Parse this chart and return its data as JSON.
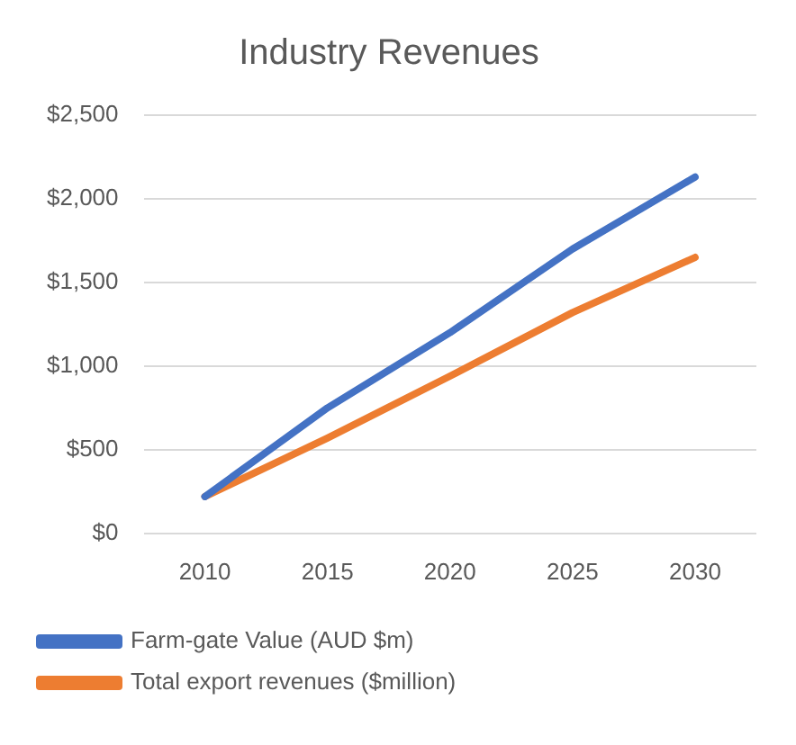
{
  "chart_data": {
    "type": "line",
    "title": "Industry Revenues",
    "categories": [
      "2010",
      "2015",
      "2020",
      "2025",
      "2030"
    ],
    "series": [
      {
        "name": "Farm-gate Value (AUD $m)",
        "color": "#4472c4",
        "values": [
          220,
          750,
          1200,
          1700,
          2130
        ]
      },
      {
        "name": "Total export revenues ($million)",
        "color": "#ed7d31",
        "values": [
          220,
          570,
          940,
          1320,
          1650
        ]
      }
    ],
    "ylim": [
      0,
      2500
    ],
    "yticks": [
      {
        "value": 0,
        "label": "$0"
      },
      {
        "value": 500,
        "label": "$500"
      },
      {
        "value": 1000,
        "label": "$1,000"
      },
      {
        "value": 1500,
        "label": "$1,500"
      },
      {
        "value": 2000,
        "label": "$2,000"
      },
      {
        "value": 2500,
        "label": "$2,500"
      }
    ],
    "grid": "y",
    "legend": "bottom",
    "marker": "none",
    "line_style": "solid"
  }
}
